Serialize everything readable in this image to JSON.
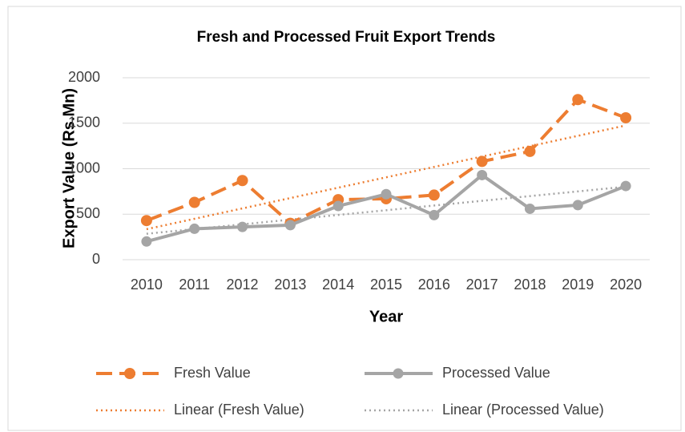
{
  "chart_data": {
    "type": "line",
    "title": "Fresh and Processed Fruit Export Trends",
    "x_label": "Year",
    "y_label": "Export Value (Rs.Mn)",
    "categories": [
      "2010",
      "2011",
      "2012",
      "2013",
      "2014",
      "2015",
      "2016",
      "2017",
      "2018",
      "2019",
      "2020"
    ],
    "series": [
      {
        "name": "Fresh Value",
        "color": "#ed7d31",
        "dashed": true,
        "values": [
          430,
          630,
          870,
          400,
          660,
          670,
          710,
          1080,
          1190,
          1760,
          1560
        ],
        "trendline": {
          "type": "linear",
          "name": "Linear (Fresh Value)",
          "color": "#ed7d31"
        }
      },
      {
        "name": "Processed Value",
        "color": "#a5a5a5",
        "dashed": false,
        "values": [
          200,
          340,
          360,
          380,
          590,
          720,
          490,
          930,
          560,
          600,
          810
        ],
        "trendline": {
          "type": "linear",
          "name": "Linear (Processed Value)",
          "color": "#a5a5a5"
        }
      }
    ],
    "ylim": [
      0,
      2000
    ],
    "yticks": [
      0,
      500,
      1000,
      1500,
      2000
    ],
    "grid": true,
    "legend": "bottom"
  }
}
